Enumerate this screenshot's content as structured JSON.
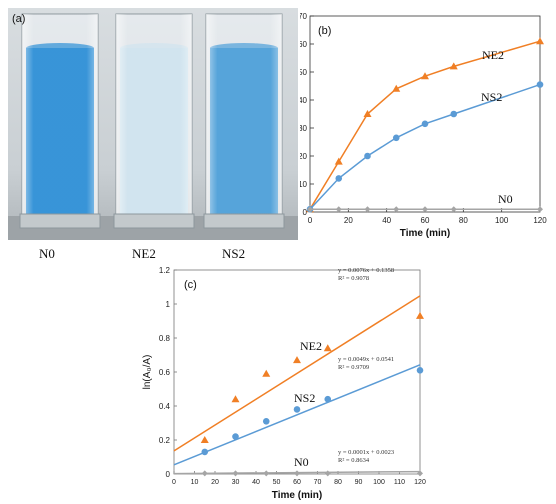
{
  "photo": {
    "label": "(a)",
    "cuvette_labels": [
      "N0",
      "NE2",
      "NS2"
    ],
    "liquid_colors": [
      "#2e8fd6",
      "#cfe3ee",
      "#4d9fd8"
    ]
  },
  "chart_data": [
    {
      "type": "line",
      "panel_label": "(b)",
      "xlabel": "Time (min)",
      "ylabel": "Degradation rate (%)",
      "xlim": [
        0,
        120
      ],
      "ylim": [
        0,
        70
      ],
      "xticks": [
        0,
        20,
        40,
        60,
        80,
        100,
        120
      ],
      "yticks": [
        0,
        10,
        20,
        30,
        40,
        50,
        60,
        70
      ],
      "grid": false,
      "series": [
        {
          "name": "NE2",
          "color": "#f07f25",
          "marker": "triangle",
          "x": [
            0,
            15,
            30,
            45,
            60,
            75,
            120
          ],
          "y": [
            1,
            18,
            35,
            44,
            48.5,
            52,
            61
          ]
        },
        {
          "name": "NS2",
          "color": "#5b9bd5",
          "marker": "circle",
          "x": [
            0,
            15,
            30,
            45,
            60,
            75,
            120
          ],
          "y": [
            1,
            12,
            20,
            26.5,
            31.5,
            35,
            45.5
          ]
        },
        {
          "name": "N0",
          "color": "#a5a5a5",
          "marker": "diamond",
          "x": [
            0,
            15,
            30,
            45,
            60,
            75,
            120
          ],
          "y": [
            1,
            1,
            1,
            1,
            1,
            1,
            1
          ]
        }
      ]
    },
    {
      "type": "scatter",
      "panel_label": "(c)",
      "xlabel": "Time (min)",
      "ylabel": "ln(A₀/A)",
      "xlim": [
        0,
        120
      ],
      "ylim": [
        0,
        1.2
      ],
      "xticks": [
        0,
        10,
        20,
        30,
        40,
        50,
        60,
        70,
        80,
        90,
        100,
        110,
        120
      ],
      "yticks": [
        0,
        0.2,
        0.4,
        0.6,
        0.8,
        1,
        1.2
      ],
      "ytick_labels": [
        "0",
        "0.2",
        "0.4",
        "0.6",
        "0.8",
        "1",
        "1.2"
      ],
      "grid": false,
      "series": [
        {
          "name": "NE2",
          "color": "#f07f25",
          "marker": "triangle",
          "x": [
            15,
            30,
            45,
            60,
            75,
            120
          ],
          "y": [
            0.2,
            0.44,
            0.59,
            0.67,
            0.74,
            0.93
          ],
          "fit": {
            "slope": 0.0076,
            "intercept": 0.1358,
            "equation": "y = 0.0076x + 0.1358",
            "r2": "R² = 0.9078"
          }
        },
        {
          "name": "NS2",
          "color": "#5b9bd5",
          "marker": "circle",
          "x": [
            15,
            30,
            45,
            60,
            75,
            120
          ],
          "y": [
            0.13,
            0.22,
            0.31,
            0.38,
            0.44,
            0.61
          ],
          "fit": {
            "slope": 0.0049,
            "intercept": 0.0541,
            "equation": "y = 0.0049x + 0.0541",
            "r2": "R² = 0.9709"
          }
        },
        {
          "name": "N0",
          "color": "#a5a5a5",
          "marker": "diamond",
          "x": [
            15,
            30,
            45,
            60,
            75,
            120
          ],
          "y": [
            0.004,
            0.004,
            0.004,
            0.004,
            0.004,
            0.004
          ],
          "fit": {
            "slope": 0.0001,
            "intercept": 0.0023,
            "equation": "y = 0.0001x + 0.0023",
            "r2": "R² = 0.8634"
          }
        }
      ]
    }
  ]
}
